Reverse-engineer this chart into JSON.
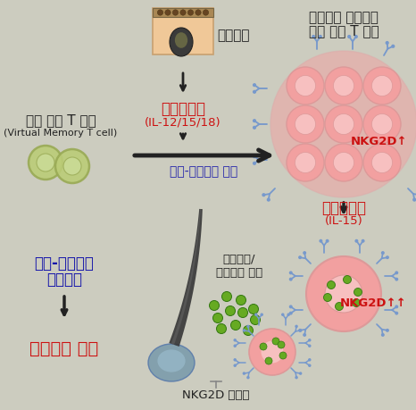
{
  "bg_color": "#ccccbf",
  "texts": {
    "follicle_label": "모낭세포",
    "cytokine1_label": "사이토카인",
    "cytokine1_sub": "(IL-12/15/18)",
    "antigen_stim": "항원-비특이적 자극",
    "activated_label1": "활성화된 세포독성",
    "activated_label2": "가상 기억 T 세포",
    "virtual_t_label1": "가상 기억 T 세포",
    "virtual_t_label2": "(Virtual Memory T cell)",
    "nkg2d_1": "NKG2D↑",
    "cytokine2_label": "사이토카인",
    "cytokine2_sub": "(IL-15)",
    "nkg2d_2": "NKG2D↑↑",
    "antigen_cytotoxic1": "항원-비특이적",
    "antigen_cytotoxic2": "세포독성",
    "cytotoxic_secretion": "세포독성/\n염증물질 분비",
    "nkg2d_ligand": "NKG2D 리간드",
    "alopecia": "원형탈모 유발"
  },
  "colors": {
    "red": "#cc1111",
    "blue": "#2222aa",
    "dark_blue": "#1111aa",
    "black": "#222222",
    "cell_pink_outer": "#f2a0a0",
    "cell_pink_inner": "#f7c0c0",
    "cell_green_outer": "#99aa55",
    "cell_green_inner": "#bbcc77",
    "hair_dark": "#3a3a3a",
    "hair_mid": "#555555",
    "hair_light": "#777777",
    "follicle_skin": "#f0c898",
    "follicle_stripe": "#aa8855",
    "nkg2d_color": "#7799cc",
    "green_dot": "#66aa22",
    "bulb_color": "#7799aa",
    "bulb_inner": "#99bbcc"
  },
  "fig_w": 4.66,
  "fig_h": 4.6,
  "dpi": 100
}
